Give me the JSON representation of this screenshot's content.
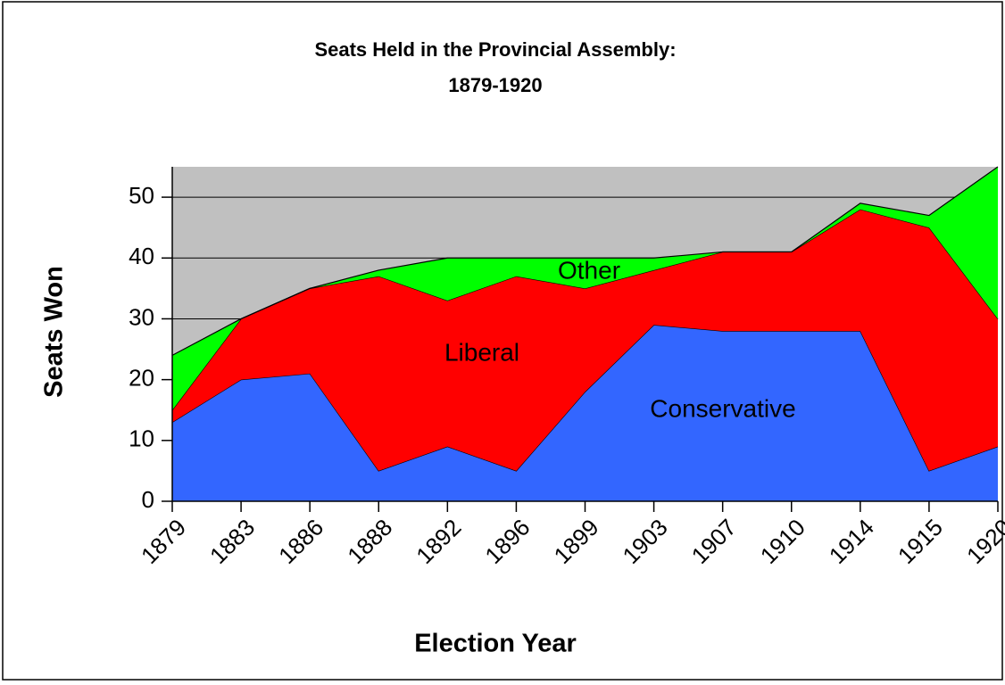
{
  "chart_data": {
    "type": "stacked_area",
    "title": [
      "Seats Held in the Provincial Assembly:",
      "1879-1920"
    ],
    "x_label": "Election Year",
    "y_label": "Seats Won",
    "categories": [
      "1879",
      "1883",
      "1886",
      "1888",
      "1892",
      "1896",
      "1899",
      "1903",
      "1907",
      "1910",
      "1914",
      "1915",
      "1920"
    ],
    "series": [
      {
        "name": "Conservative",
        "color": "#3366ff",
        "values": [
          13,
          20,
          21,
          5,
          9,
          5,
          18,
          29,
          28,
          28,
          28,
          5,
          9
        ]
      },
      {
        "name": "Liberal",
        "color": "#ff0000",
        "values": [
          2,
          10,
          14,
          32,
          24,
          32,
          17,
          9,
          13,
          13,
          20,
          40,
          21
        ]
      },
      {
        "name": "Other",
        "color": "#00ff00",
        "values": [
          9,
          0,
          0,
          1,
          7,
          3,
          5,
          2,
          0,
          0,
          1,
          2,
          25
        ]
      }
    ],
    "ylim": [
      0,
      55
    ],
    "yticks": [
      0,
      10,
      20,
      30,
      40,
      50
    ],
    "grid": true,
    "plot_background": "#c0c0c0"
  }
}
